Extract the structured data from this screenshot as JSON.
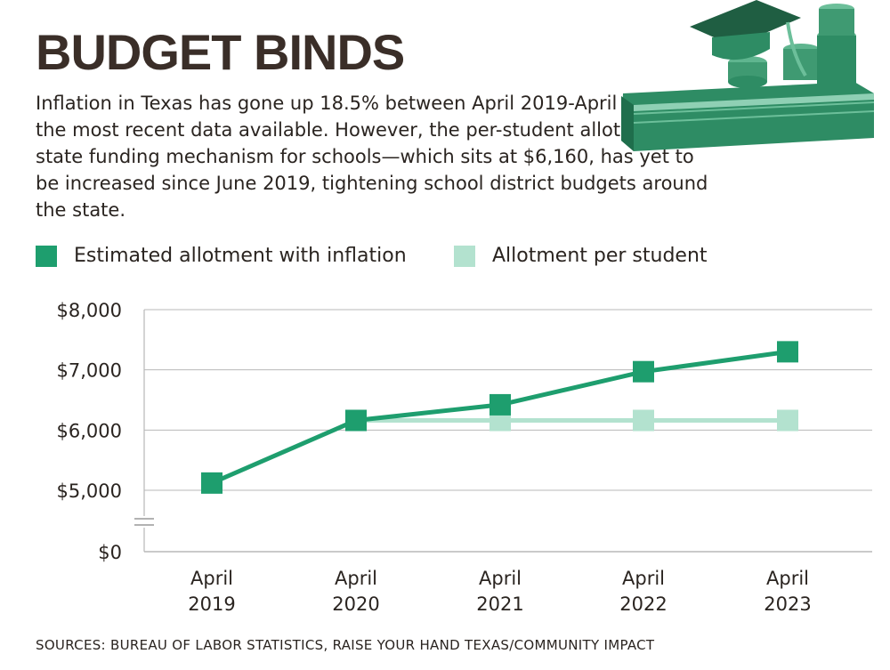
{
  "header": {
    "title": "BUDGET BINDS",
    "intro": "Inflation in Texas has gone up 18.5% between April 2019-April 2023—the most recent data available. However, the per-student allotment—a state funding mechanism for schools—which sits at $6,160, has yet to be increased since June 2019, tightening school district budgets around the state."
  },
  "legend": {
    "items": [
      {
        "label": "Estimated allotment with inflation",
        "color": "#1e9e6e"
      },
      {
        "label": "Allotment per student",
        "color": "#b3e2cf"
      }
    ]
  },
  "footer": {
    "source": "SOURCES: BUREAU OF LABOR STATISTICS, RAISE YOUR HAND TEXAS/COMMUNITY IMPACT"
  },
  "illustration": {
    "icon": "graduation-cap-on-book-with-coins-icon",
    "color": "#2e8c64"
  },
  "chart_data": {
    "type": "line",
    "categories": [
      [
        "April",
        "2019"
      ],
      [
        "April",
        "2020"
      ],
      [
        "April",
        "2021"
      ],
      [
        "April",
        "2022"
      ],
      [
        "April",
        "2023"
      ]
    ],
    "series": [
      {
        "name": "Estimated allotment with inflation",
        "values": [
          5120,
          6160,
          6420,
          6970,
          7300
        ],
        "color": "#1e9e6e"
      },
      {
        "name": "Allotment per student",
        "values": [
          null,
          6160,
          6160,
          6160,
          6160
        ],
        "color": "#b3e2cf"
      }
    ],
    "yticks": [
      {
        "value": 8000,
        "label": "$8,000"
      },
      {
        "value": 7000,
        "label": "$7,000"
      },
      {
        "value": 6000,
        "label": "$6,000"
      },
      {
        "value": 5000,
        "label": "$5,000"
      },
      {
        "value": 0,
        "label": "$0"
      }
    ],
    "axis_break": true,
    "grid": true,
    "legend_position": "top-left"
  }
}
